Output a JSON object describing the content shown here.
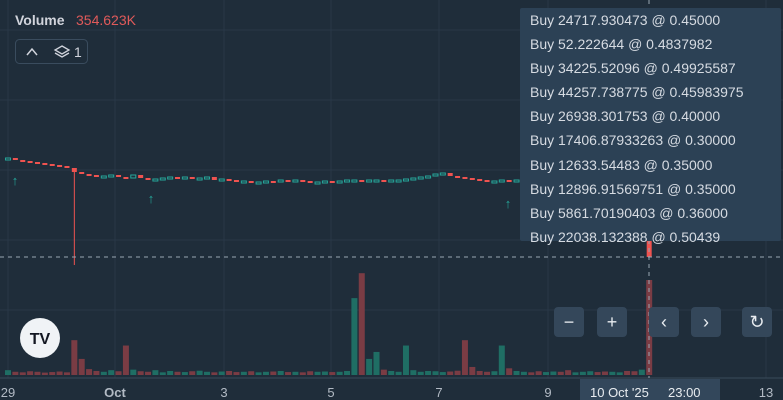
{
  "legend": {
    "label": "Volume",
    "value_label": "354.623K"
  },
  "layers_count": "1",
  "tooltip": [
    "Buy 24717.930473 @ 0.45000",
    "Buy 52.222644 @ 0.4837982",
    "Buy 34225.52096 @ 0.49925587",
    "Buy 44257.738775 @ 0.45983975",
    "Buy 26938.301753 @ 0.40000",
    "Buy 17406.87933263 @ 0.30000",
    "Buy 12633.54483 @ 0.35000",
    "Buy 12896.91569751 @ 0.35000",
    "Buy 5861.70190403 @ 0.36000",
    "Buy 22038.132388 @ 0.50439"
  ],
  "x_axis": {
    "labels": [
      "29",
      "Oct",
      "3",
      "5",
      "7",
      "9",
      "13"
    ],
    "crosshair_date": "10 Oct '25",
    "crosshair_time": "23:00"
  },
  "chart_data": {
    "type": "candlestick",
    "closes": [
      0.442,
      0.44,
      0.439,
      0.438,
      0.437,
      0.436,
      0.435,
      0.434,
      0.432,
      0.428,
      0.426,
      0.425,
      0.424,
      0.424,
      0.425,
      0.423,
      0.422,
      0.425,
      0.422,
      0.42,
      0.421,
      0.422,
      0.423,
      0.422,
      0.423,
      0.421,
      0.422,
      0.423,
      0.42,
      0.421,
      0.42,
      0.419,
      0.419,
      0.418,
      0.418,
      0.419,
      0.418,
      0.42,
      0.419,
      0.42,
      0.419,
      0.418,
      0.418,
      0.419,
      0.418,
      0.419,
      0.42,
      0.42,
      0.419,
      0.42,
      0.42,
      0.419,
      0.42,
      0.42,
      0.421,
      0.422,
      0.423,
      0.424,
      0.426,
      0.427,
      0.424,
      0.423,
      0.422,
      0.421,
      0.42,
      0.419,
      0.419,
      0.42,
      0.419,
      0.42,
      0.421,
      0.42,
      0.419,
      0.42,
      0.421,
      0.42,
      0.419,
      0.42,
      0.42,
      0.421,
      0.42,
      0.419,
      0.42,
      0.421,
      0.42,
      0.419,
      0.421,
      0.343
    ],
    "lows": [
      null,
      null,
      null,
      null,
      null,
      null,
      null,
      null,
      null,
      0.335,
      null,
      null,
      null,
      null,
      null,
      null,
      null,
      null,
      null,
      null,
      null,
      null,
      null,
      null,
      null,
      null,
      null,
      null,
      null,
      null,
      null,
      null,
      null,
      null,
      null,
      null,
      null,
      null,
      null,
      null,
      null,
      null,
      null,
      null,
      null,
      null,
      null,
      null,
      null,
      null,
      null,
      null,
      null,
      null,
      null,
      null,
      null,
      null,
      null,
      null,
      null,
      null,
      null,
      null,
      null,
      null,
      null,
      null,
      null,
      null,
      null,
      null,
      null,
      null,
      null,
      null,
      null,
      null,
      null,
      null,
      null,
      null,
      null,
      null,
      null,
      null,
      null,
      null
    ],
    "volumes": [
      18,
      12,
      10,
      14,
      12,
      9,
      11,
      13,
      10,
      130,
      60,
      22,
      15,
      12,
      18,
      14,
      110,
      20,
      14,
      12,
      18,
      10,
      15,
      12,
      11,
      14,
      16,
      12,
      10,
      13,
      15,
      11,
      12,
      14,
      10,
      12,
      13,
      15,
      11,
      12,
      10,
      14,
      12,
      13,
      11,
      12,
      15,
      287,
      380,
      60,
      86,
      20,
      15,
      12,
      110,
      18,
      12,
      15,
      14,
      11,
      13,
      16,
      130,
      30,
      15,
      12,
      14,
      110,
      25,
      15,
      12,
      10,
      14,
      11,
      13,
      12,
      18,
      10,
      12,
      14,
      11,
      13,
      12,
      10,
      15,
      14,
      20,
      354.623
    ],
    "up_color": "#26a69a",
    "down_color": "#ef5350",
    "volume_up_color": "#1f6e64",
    "volume_down_color": "#7a3c44"
  }
}
